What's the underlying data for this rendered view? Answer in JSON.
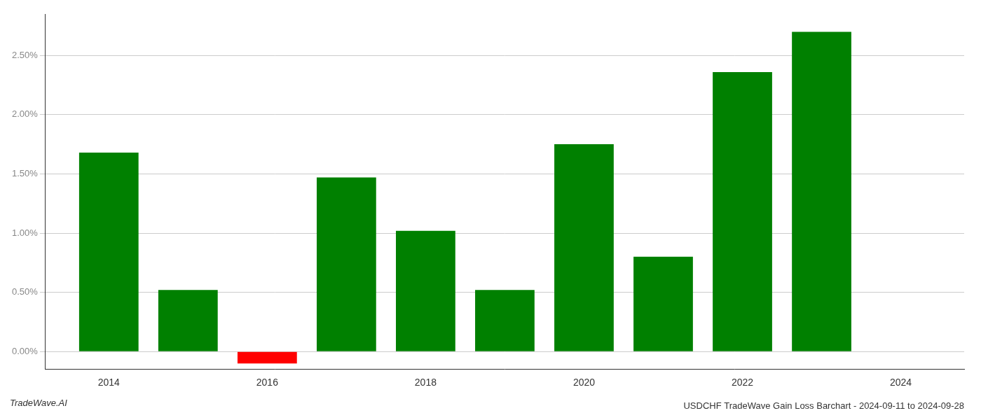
{
  "chart_data": {
    "type": "bar",
    "title": "USDCHF TradeWave Gain Loss Barchart - 2024-09-11 to 2024-09-28",
    "annotations": [
      "TradeWave.AI"
    ],
    "x": [
      2014,
      2015,
      2016,
      2017,
      2018,
      2019,
      2020,
      2021,
      2022,
      2023
    ],
    "values": [
      1.68,
      0.52,
      -0.1,
      1.47,
      1.02,
      0.52,
      1.75,
      0.8,
      2.36,
      2.7
    ],
    "colors": [
      "#008000",
      "#008000",
      "#ff0000",
      "#008000",
      "#008000",
      "#008000",
      "#008000",
      "#008000",
      "#008000",
      "#008000"
    ],
    "xlim": [
      2013.2,
      2024.8
    ],
    "xticks": [
      2014,
      2016,
      2018,
      2020,
      2022,
      2024
    ],
    "ylim": [
      -0.15,
      2.85
    ],
    "yticks": [
      {
        "value": 0.0,
        "label": "0.00%"
      },
      {
        "value": 0.5,
        "label": "0.50%"
      },
      {
        "value": 1.0,
        "label": "1.00%"
      },
      {
        "value": 1.5,
        "label": "1.50%"
      },
      {
        "value": 2.0,
        "label": "2.00%"
      },
      {
        "value": 2.5,
        "label": "2.50%"
      }
    ],
    "grid": true
  }
}
